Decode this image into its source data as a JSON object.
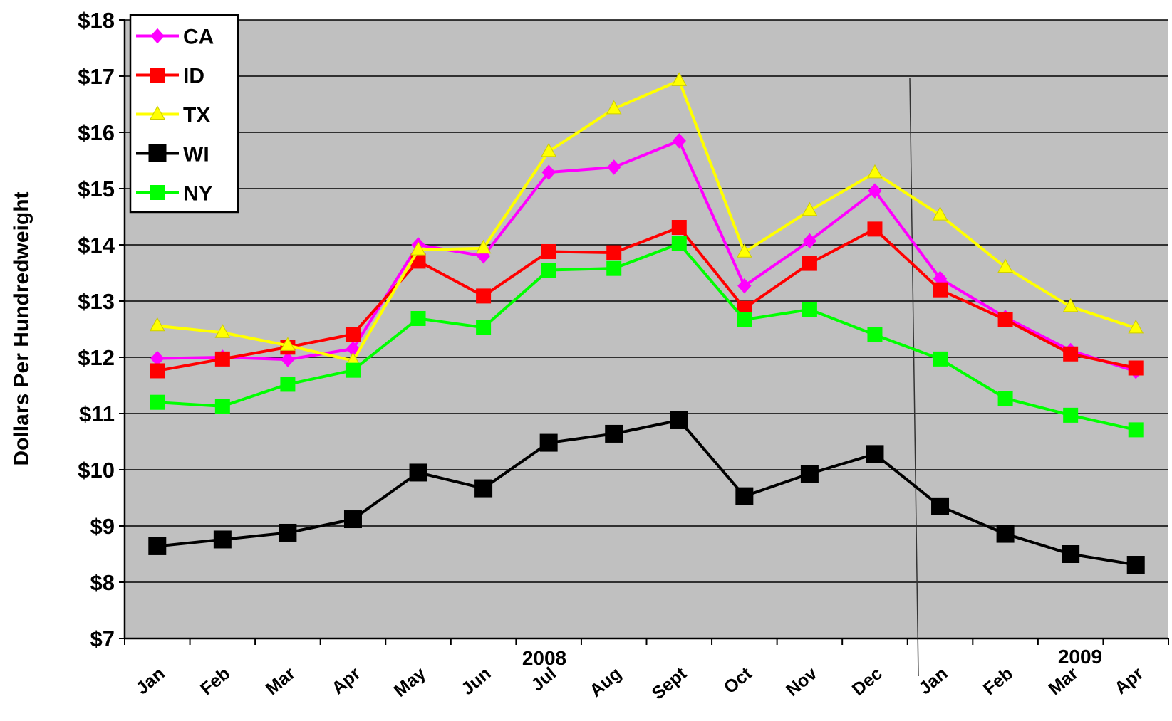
{
  "chart_data": {
    "type": "line",
    "ylabel": "Dollars Per Hundredweight",
    "categories": [
      "Jan",
      "Feb",
      "Mar",
      "Apr",
      "May",
      "Jun",
      "Jul",
      "Aug",
      "Sept",
      "Oct",
      "Nov",
      "Dec",
      "Jan",
      "Feb",
      "Mar",
      "Apr"
    ],
    "annotations": [
      "2008",
      "2009"
    ],
    "series": [
      {
        "name": "CA",
        "color": "#ff00ff",
        "marker": "diamond",
        "values": [
          11.98,
          12.0,
          11.96,
          12.15,
          14.0,
          13.8,
          15.29,
          15.38,
          15.85,
          13.27,
          14.07,
          14.96,
          13.4,
          12.71,
          12.12,
          11.75
        ]
      },
      {
        "name": "ID",
        "color": "#ff0000",
        "marker": "square",
        "values": [
          11.76,
          11.97,
          12.18,
          12.41,
          13.71,
          13.09,
          13.88,
          13.86,
          14.31,
          12.87,
          13.67,
          14.28,
          13.2,
          12.67,
          12.06,
          11.81
        ]
      },
      {
        "name": "TX",
        "color": "#ffff00",
        "marker": "triangle",
        "values": [
          12.56,
          12.44,
          12.21,
          11.94,
          13.91,
          13.94,
          15.66,
          16.42,
          16.92,
          13.87,
          14.61,
          15.28,
          14.53,
          13.6,
          12.9,
          12.52
        ]
      },
      {
        "name": "WI",
        "color": "#000000",
        "marker": "square",
        "values": [
          8.64,
          8.76,
          8.88,
          9.12,
          9.95,
          9.67,
          10.48,
          10.64,
          10.88,
          9.53,
          9.93,
          10.28,
          9.35,
          8.86,
          8.5,
          8.31
        ]
      },
      {
        "name": "NY",
        "color": "#00ff00",
        "marker": "square",
        "values": [
          11.2,
          11.13,
          11.52,
          11.77,
          12.69,
          12.53,
          13.55,
          13.58,
          14.02,
          12.67,
          12.85,
          12.4,
          11.97,
          11.27,
          10.97,
          10.71
        ]
      }
    ],
    "ylim": [
      7,
      18
    ],
    "yticks": [
      {
        "value": 7,
        "label": "$7"
      },
      {
        "value": 8,
        "label": "$8"
      },
      {
        "value": 9,
        "label": "$9"
      },
      {
        "value": 10,
        "label": "$10"
      },
      {
        "value": 11,
        "label": "$11"
      },
      {
        "value": 12,
        "label": "$12"
      },
      {
        "value": 13,
        "label": "$13"
      },
      {
        "value": 14,
        "label": "$14"
      },
      {
        "value": 15,
        "label": "$15"
      },
      {
        "value": 16,
        "label": "$16"
      },
      {
        "value": 17,
        "label": "$17"
      },
      {
        "value": 18,
        "label": "$18"
      }
    ],
    "grid": true,
    "legend": "upper left",
    "plot_background": "#c0c0c0"
  }
}
